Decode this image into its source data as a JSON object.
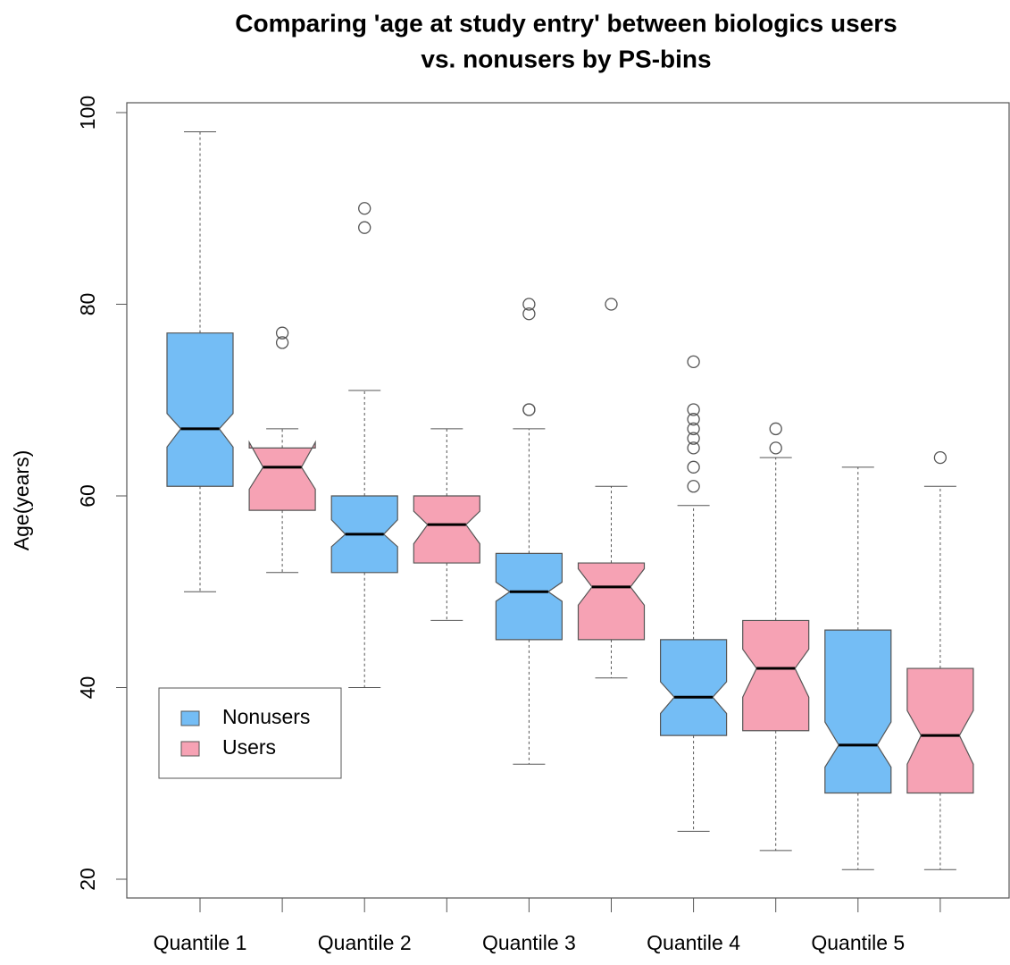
{
  "chart_data": {
    "type": "boxplot",
    "title": [
      "Comparing 'age at study entry' between biologics users",
      "vs. nonusers by PS-bins"
    ],
    "ylabel": "Age(years)",
    "categories": [
      "Quantile 1",
      null,
      "Quantile 2",
      null,
      "Quantile 3",
      null,
      "Quantile 4",
      null,
      "Quantile 5",
      null
    ],
    "series": [
      {
        "name": "Nonusers",
        "color": "#74bdf5"
      },
      {
        "name": "Users",
        "color": "#f6a2b4"
      }
    ],
    "boxes": [
      {
        "whisker_low": 50,
        "q1": 61,
        "median": 67,
        "q3": 77,
        "whisker_high": 98,
        "notch_low": 65.1,
        "notch_high": 68.6,
        "outliers": []
      },
      {
        "whisker_low": 52,
        "q1": 58.5,
        "median": 63,
        "q3": 65,
        "whisker_high": 67,
        "notch_low": 60.7,
        "notch_high": 65.6,
        "outliers": [
          77,
          76
        ]
      },
      {
        "whisker_low": 40,
        "q1": 52,
        "median": 56,
        "q3": 60,
        "whisker_high": 71,
        "notch_low": 54.7,
        "notch_high": 57.5,
        "outliers": [
          90,
          88
        ]
      },
      {
        "whisker_low": 47,
        "q1": 53,
        "median": 57,
        "q3": 60,
        "whisker_high": 67,
        "notch_low": 55,
        "notch_high": 58.4,
        "outliers": []
      },
      {
        "whisker_low": 32,
        "q1": 45,
        "median": 50,
        "q3": 54,
        "whisker_high": 67,
        "notch_low": 49,
        "notch_high": 51,
        "outliers": [
          80,
          79,
          69,
          69
        ]
      },
      {
        "whisker_low": 41,
        "q1": 45,
        "median": 50.5,
        "q3": 53,
        "whisker_high": 61,
        "notch_low": 48.6,
        "notch_high": 52.4,
        "outliers": [
          80
        ]
      },
      {
        "whisker_low": 25,
        "q1": 35,
        "median": 39,
        "q3": 45,
        "whisker_high": 59,
        "notch_low": 37.3,
        "notch_high": 40.6,
        "outliers": [
          74,
          69,
          68,
          67,
          66,
          65,
          63,
          61
        ]
      },
      {
        "whisker_low": 23,
        "q1": 35.5,
        "median": 42,
        "q3": 47,
        "whisker_high": 64,
        "notch_low": 39,
        "notch_high": 44,
        "outliers": [
          67,
          65
        ]
      },
      {
        "whisker_low": 21,
        "q1": 29,
        "median": 34,
        "q3": 46,
        "whisker_high": 63,
        "notch_low": 31.7,
        "notch_high": 36.4,
        "outliers": []
      },
      {
        "whisker_low": 21,
        "q1": 29,
        "median": 35,
        "q3": 42,
        "whisker_high": 61,
        "notch_low": 32,
        "notch_high": 37.6,
        "outliers": [
          64
        ]
      }
    ],
    "ylim": [
      20,
      100
    ],
    "yticks": [
      20,
      40,
      60,
      80,
      100
    ],
    "legend": "bottom-left"
  }
}
